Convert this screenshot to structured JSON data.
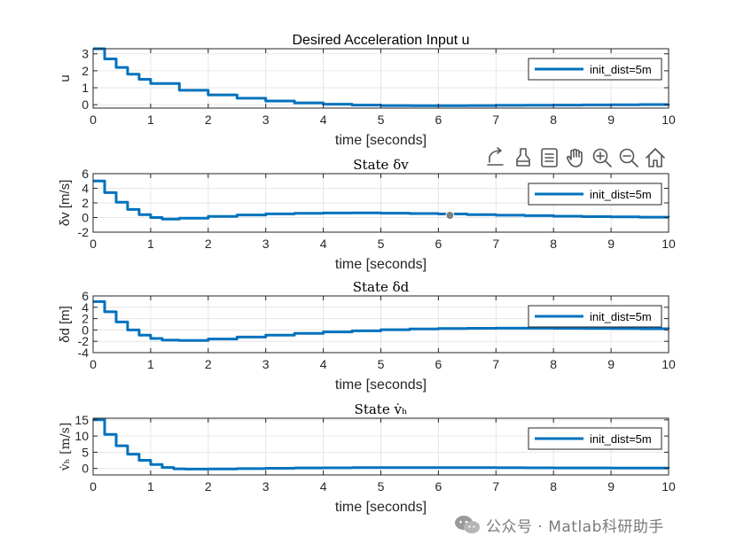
{
  "colors": {
    "line": "#0072BD",
    "axis": "#262626",
    "grid": "#e6e6e6",
    "toolbar": "#555555"
  },
  "toolbar": {
    "icons": [
      "export-icon",
      "brush-icon",
      "data-tips-icon",
      "pan-icon",
      "zoom-in-icon",
      "zoom-out-icon",
      "home-icon"
    ]
  },
  "cursor_marker": {
    "x": 6.2,
    "y": 0.3
  },
  "watermark": {
    "text": "公众号 · Matlab科研助手"
  },
  "chart_data": [
    {
      "type": "line",
      "title": "Desired Acceleration Input u",
      "title_font": "sans",
      "xlabel": "time [seconds]",
      "ylabel": "u",
      "xlim": [
        0,
        10
      ],
      "ylim": [
        -0.2,
        3.3
      ],
      "xticks": [
        "0",
        "1",
        "2",
        "3",
        "4",
        "5",
        "6",
        "7",
        "8",
        "9",
        "10"
      ],
      "yticks": [
        "0",
        "1",
        "2",
        "3"
      ],
      "yticks_values": [
        0,
        1,
        2,
        3
      ],
      "grid": true,
      "legend_position": "top-right",
      "series": [
        {
          "name": "init_dist=5m",
          "x": [
            0,
            0.2,
            0.4,
            0.6,
            0.8,
            1,
            1.5,
            2,
            2.5,
            3,
            3.5,
            4,
            4.5,
            5,
            5.5,
            6,
            6.5,
            7,
            7.5,
            8,
            8.5,
            9,
            9.5,
            10
          ],
          "y": [
            3.3,
            2.7,
            2.2,
            1.8,
            1.5,
            1.25,
            0.85,
            0.58,
            0.38,
            0.22,
            0.11,
            0.03,
            -0.02,
            -0.05,
            -0.06,
            -0.06,
            -0.05,
            -0.04,
            -0.03,
            -0.02,
            -0.01,
            0,
            0.01,
            0.02
          ]
        }
      ]
    },
    {
      "type": "line",
      "title": "State δv",
      "title_font": "serif",
      "xlabel": "time [seconds]",
      "ylabel": "δv [m/s]",
      "xlim": [
        0,
        10
      ],
      "ylim": [
        -2,
        6
      ],
      "xticks": [
        "0",
        "1",
        "2",
        "3",
        "4",
        "5",
        "6",
        "7",
        "8",
        "9",
        "10"
      ],
      "yticks": [
        "-2",
        "0",
        "2",
        "4",
        "6"
      ],
      "yticks_values": [
        -2,
        0,
        2,
        4,
        6
      ],
      "grid": true,
      "legend_position": "top-right",
      "series": [
        {
          "name": "init_dist=5m",
          "x": [
            0,
            0.2,
            0.4,
            0.6,
            0.8,
            1,
            1.2,
            1.5,
            2,
            2.5,
            3,
            3.5,
            4,
            4.5,
            5,
            5.5,
            6,
            6.5,
            7,
            7.5,
            8,
            8.5,
            9,
            9.5,
            10
          ],
          "y": [
            5,
            3.4,
            2.1,
            1.1,
            0.4,
            0,
            -0.2,
            -0.1,
            0.15,
            0.35,
            0.5,
            0.58,
            0.62,
            0.63,
            0.6,
            0.55,
            0.48,
            0.4,
            0.32,
            0.25,
            0.18,
            0.12,
            0.08,
            0.05,
            0.03
          ]
        }
      ]
    },
    {
      "type": "line",
      "title": "State δd",
      "title_font": "serif",
      "xlabel": "time [seconds]",
      "ylabel": "δd [m]",
      "xlim": [
        0,
        10
      ],
      "ylim": [
        -4,
        6
      ],
      "xticks": [
        "0",
        "1",
        "2",
        "3",
        "4",
        "5",
        "6",
        "7",
        "8",
        "9",
        "10"
      ],
      "yticks": [
        "-4",
        "-2",
        "0",
        "2",
        "4",
        "6"
      ],
      "yticks_values": [
        -4,
        -2,
        0,
        2,
        4,
        6
      ],
      "grid": true,
      "legend_position": "top-right",
      "series": [
        {
          "name": "init_dist=5m",
          "x": [
            0,
            0.2,
            0.4,
            0.6,
            0.8,
            1,
            1.2,
            1.5,
            2,
            2.5,
            3,
            3.5,
            4,
            4.5,
            5,
            5.5,
            6,
            6.5,
            7,
            7.5,
            8,
            8.5,
            9,
            9.5,
            10
          ],
          "y": [
            5,
            3.2,
            1.4,
            0,
            -0.9,
            -1.5,
            -1.8,
            -1.85,
            -1.6,
            -1.25,
            -0.9,
            -0.6,
            -0.35,
            -0.15,
            0.05,
            0.18,
            0.25,
            0.3,
            0.32,
            0.32,
            0.3,
            0.28,
            0.25,
            0.22,
            0.2
          ]
        }
      ]
    },
    {
      "type": "line",
      "title": "State v̇ₕ",
      "title_font": "serif",
      "xlabel": "time [seconds]",
      "ylabel": "v̇ₕ [m/s]",
      "xlim": [
        0,
        10
      ],
      "ylim": [
        -2,
        15.5
      ],
      "xticks": [
        "0",
        "1",
        "2",
        "3",
        "4",
        "5",
        "6",
        "7",
        "8",
        "9",
        "10"
      ],
      "yticks": [
        "0",
        "5",
        "10",
        "15"
      ],
      "yticks_values": [
        0,
        5,
        10,
        15
      ],
      "grid": true,
      "legend_position": "top-right",
      "series": [
        {
          "name": "init_dist=5m",
          "x": [
            0,
            0.2,
            0.4,
            0.6,
            0.8,
            1,
            1.2,
            1.4,
            1.6,
            2,
            2.5,
            3,
            3.5,
            4,
            4.5,
            5,
            5.5,
            6,
            6.5,
            7,
            7.5,
            8,
            8.5,
            9,
            9.5,
            10
          ],
          "y": [
            15,
            10.5,
            7,
            4.4,
            2.5,
            1.2,
            0.3,
            -0.1,
            -0.2,
            -0.15,
            -0.05,
            0.05,
            0.15,
            0.2,
            0.25,
            0.28,
            0.28,
            0.27,
            0.25,
            0.22,
            0.2,
            0.17,
            0.15,
            0.12,
            0.1,
            0.08
          ]
        }
      ]
    }
  ]
}
